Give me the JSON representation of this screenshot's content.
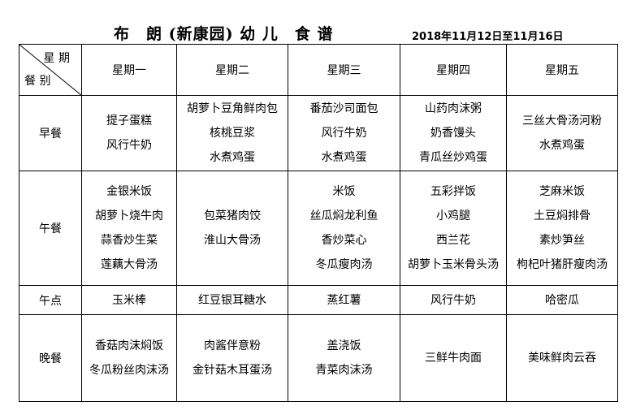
{
  "title": "布　朗 (新康园) 幼 儿　食 谱",
  "date_range": "2018年11月12日至11月16日",
  "corner": {
    "top": "星 期",
    "bottom": "餐 别"
  },
  "days": [
    "星期一",
    "星期二",
    "星期三",
    "星期四",
    "星期五"
  ],
  "meals": [
    {
      "name": "早餐",
      "cells": [
        [
          "提子蛋糕",
          "风行牛奶"
        ],
        [
          "胡萝卜豆角鲜肉包",
          "核桃豆浆",
          "水煮鸡蛋"
        ],
        [
          "番茄沙司面包",
          "风行牛奶",
          "水煮鸡蛋"
        ],
        [
          "山药肉沫粥",
          "奶香馒头",
          "青瓜丝炒鸡蛋"
        ],
        [
          "三丝大骨汤河粉",
          "水煮鸡蛋"
        ]
      ]
    },
    {
      "name": "午餐",
      "cells": [
        [
          "金银米饭",
          "胡萝卜烧牛肉",
          "蒜香炒生菜",
          "莲藕大骨汤"
        ],
        [
          "包菜猪肉饺",
          "淮山大骨汤"
        ],
        [
          "米饭",
          "丝瓜焖龙利鱼",
          "香炒菜心",
          "冬瓜瘦肉汤"
        ],
        [
          "五彩拌饭",
          "小鸡腿",
          "西兰花",
          "胡萝卜玉米骨头汤"
        ],
        [
          "芝麻米饭",
          "土豆焖排骨",
          "素炒笋丝",
          "枸杞叶猪肝瘦肉汤"
        ]
      ]
    },
    {
      "name": "午点",
      "cells": [
        [
          "玉米棒"
        ],
        [
          "红豆银耳糖水"
        ],
        [
          "蒸红薯"
        ],
        [
          "风行牛奶"
        ],
        [
          "哈密瓜"
        ]
      ]
    },
    {
      "name": "晚餐",
      "cells": [
        [
          "香菇肉沫焖饭",
          "冬瓜粉丝肉沫汤"
        ],
        [
          "肉酱伴意粉",
          "金针菇木耳蛋汤"
        ],
        [
          "盖浇饭",
          "青菜肉沫汤"
        ],
        [
          "三鲜牛肉面"
        ],
        [
          "美味鲜肉云吞"
        ]
      ]
    }
  ]
}
